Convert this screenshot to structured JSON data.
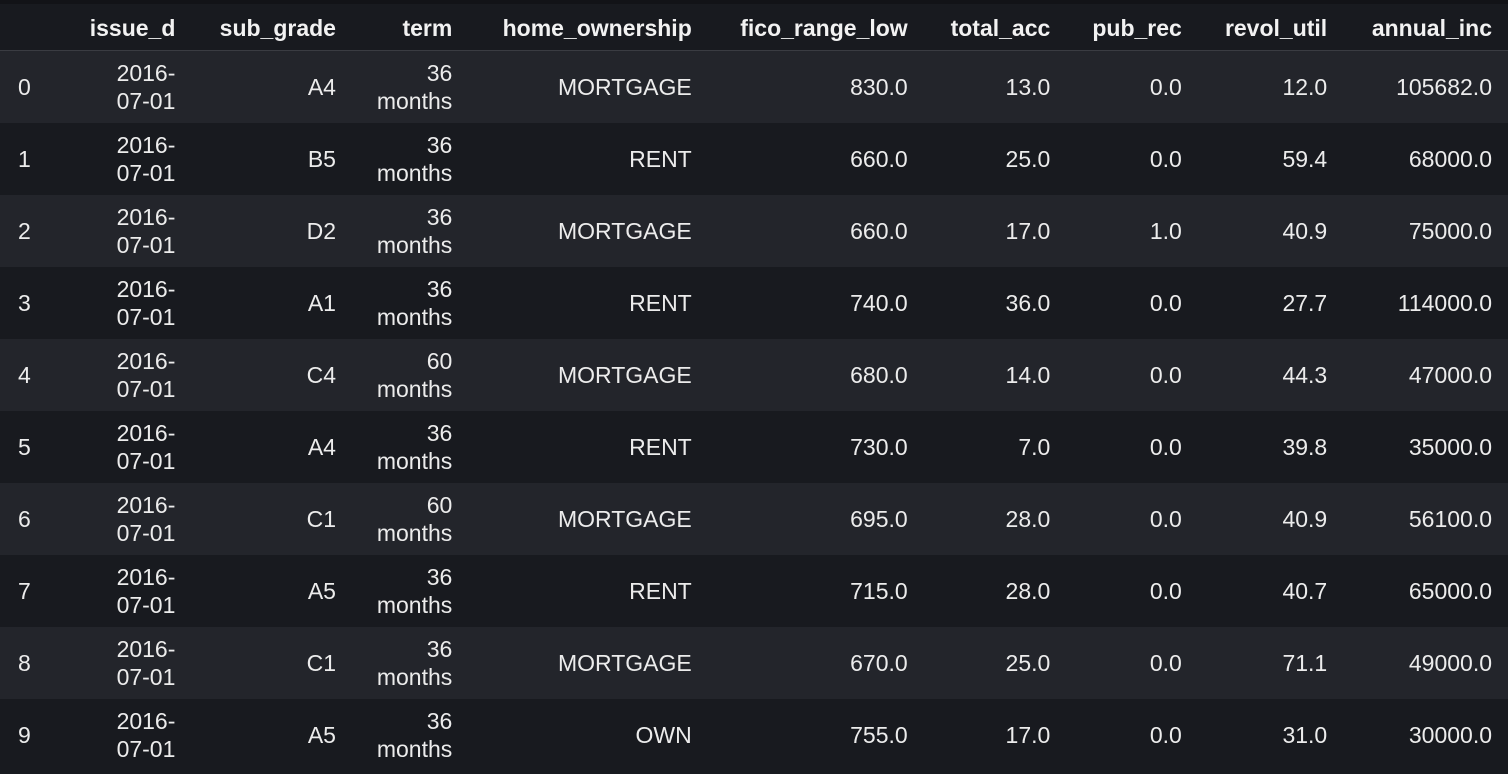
{
  "columns": [
    "issue_d",
    "sub_grade",
    "term",
    "home_ownership",
    "fico_range_low",
    "total_acc",
    "pub_rec",
    "revol_util",
    "annual_inc"
  ],
  "rows": [
    {
      "index": "0",
      "issue_d": [
        "2016-",
        "07-01"
      ],
      "sub_grade": "A4",
      "term": [
        "36",
        "months"
      ],
      "home_ownership": "MORTGAGE",
      "fico_range_low": "830.0",
      "total_acc": "13.0",
      "pub_rec": "0.0",
      "revol_util": "12.0",
      "annual_inc": "105682.0"
    },
    {
      "index": "1",
      "issue_d": [
        "2016-",
        "07-01"
      ],
      "sub_grade": "B5",
      "term": [
        "36",
        "months"
      ],
      "home_ownership": "RENT",
      "fico_range_low": "660.0",
      "total_acc": "25.0",
      "pub_rec": "0.0",
      "revol_util": "59.4",
      "annual_inc": "68000.0"
    },
    {
      "index": "2",
      "issue_d": [
        "2016-",
        "07-01"
      ],
      "sub_grade": "D2",
      "term": [
        "36",
        "months"
      ],
      "home_ownership": "MORTGAGE",
      "fico_range_low": "660.0",
      "total_acc": "17.0",
      "pub_rec": "1.0",
      "revol_util": "40.9",
      "annual_inc": "75000.0"
    },
    {
      "index": "3",
      "issue_d": [
        "2016-",
        "07-01"
      ],
      "sub_grade": "A1",
      "term": [
        "36",
        "months"
      ],
      "home_ownership": "RENT",
      "fico_range_low": "740.0",
      "total_acc": "36.0",
      "pub_rec": "0.0",
      "revol_util": "27.7",
      "annual_inc": "114000.0"
    },
    {
      "index": "4",
      "issue_d": [
        "2016-",
        "07-01"
      ],
      "sub_grade": "C4",
      "term": [
        "60",
        "months"
      ],
      "home_ownership": "MORTGAGE",
      "fico_range_low": "680.0",
      "total_acc": "14.0",
      "pub_rec": "0.0",
      "revol_util": "44.3",
      "annual_inc": "47000.0"
    },
    {
      "index": "5",
      "issue_d": [
        "2016-",
        "07-01"
      ],
      "sub_grade": "A4",
      "term": [
        "36",
        "months"
      ],
      "home_ownership": "RENT",
      "fico_range_low": "730.0",
      "total_acc": "7.0",
      "pub_rec": "0.0",
      "revol_util": "39.8",
      "annual_inc": "35000.0"
    },
    {
      "index": "6",
      "issue_d": [
        "2016-",
        "07-01"
      ],
      "sub_grade": "C1",
      "term": [
        "60",
        "months"
      ],
      "home_ownership": "MORTGAGE",
      "fico_range_low": "695.0",
      "total_acc": "28.0",
      "pub_rec": "0.0",
      "revol_util": "40.9",
      "annual_inc": "56100.0"
    },
    {
      "index": "7",
      "issue_d": [
        "2016-",
        "07-01"
      ],
      "sub_grade": "A5",
      "term": [
        "36",
        "months"
      ],
      "home_ownership": "RENT",
      "fico_range_low": "715.0",
      "total_acc": "28.0",
      "pub_rec": "0.0",
      "revol_util": "40.7",
      "annual_inc": "65000.0"
    },
    {
      "index": "8",
      "issue_d": [
        "2016-",
        "07-01"
      ],
      "sub_grade": "C1",
      "term": [
        "36",
        "months"
      ],
      "home_ownership": "MORTGAGE",
      "fico_range_low": "670.0",
      "total_acc": "25.0",
      "pub_rec": "0.0",
      "revol_util": "71.1",
      "annual_inc": "49000.0"
    },
    {
      "index": "9",
      "issue_d": [
        "2016-",
        "07-01"
      ],
      "sub_grade": "A5",
      "term": [
        "36",
        "months"
      ],
      "home_ownership": "OWN",
      "fico_range_low": "755.0",
      "total_acc": "17.0",
      "pub_rec": "0.0",
      "revol_util": "31.0",
      "annual_inc": "30000.0"
    }
  ]
}
